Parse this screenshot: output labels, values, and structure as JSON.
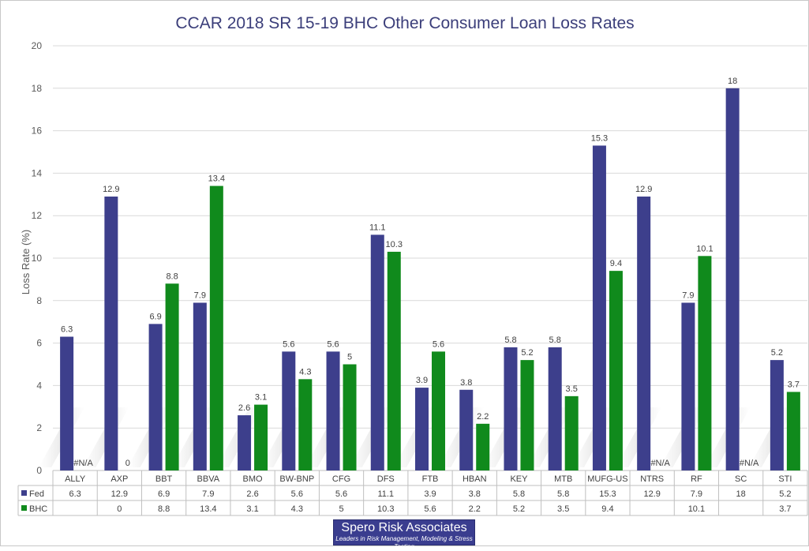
{
  "chart_data": {
    "type": "bar",
    "title": "CCAR 2018 SR 15-19 BHC Other Consumer Loan Loss Rates",
    "ylabel": "Loss Rate (%)",
    "xlabel": "",
    "ylim": [
      0,
      20
    ],
    "yticks": [
      0,
      2,
      4,
      6,
      8,
      10,
      12,
      14,
      16,
      18,
      20
    ],
    "grid": true,
    "legend": "data-table",
    "categories": [
      "ALLY",
      "AXP",
      "BBT",
      "BBVA",
      "BMO",
      "BW-BNP",
      "CFG",
      "DFS",
      "FTB",
      "HBAN",
      "KEY",
      "MTB",
      "MUFG-US",
      "NTRS",
      "RF",
      "SC",
      "STI"
    ],
    "series": [
      {
        "name": "Fed",
        "color": "#3d3f8c",
        "values": [
          6.3,
          12.9,
          6.9,
          7.9,
          2.6,
          5.6,
          5.6,
          11.1,
          3.9,
          3.8,
          5.8,
          5.8,
          15.3,
          12.9,
          7.9,
          18,
          5.2
        ],
        "labels": [
          "6.3",
          "12.9",
          "6.9",
          "7.9",
          "2.6",
          "5.6",
          "5.6",
          "11.1",
          "3.9",
          "3.8",
          "5.8",
          "5.8",
          "15.3",
          "12.9",
          "7.9",
          "18",
          "5.2"
        ],
        "table": [
          "6.3",
          "12.9",
          "6.9",
          "7.9",
          "2.6",
          "5.6",
          "5.6",
          "11.1",
          "3.9",
          "3.8",
          "5.8",
          "5.8",
          "15.3",
          "12.9",
          "7.9",
          "18",
          "5.2"
        ]
      },
      {
        "name": "BHC",
        "color": "#108a1c",
        "values": [
          null,
          0,
          8.8,
          13.4,
          3.1,
          4.3,
          5,
          10.3,
          5.6,
          2.2,
          5.2,
          3.5,
          9.4,
          null,
          10.1,
          null,
          3.7
        ],
        "labels": [
          "#N/A",
          "0",
          "8.8",
          "13.4",
          "3.1",
          "4.3",
          "5",
          "10.3",
          "5.6",
          "2.2",
          "5.2",
          "3.5",
          "9.4",
          "#N/A",
          "10.1",
          "#N/A",
          "3.7"
        ],
        "table": [
          "",
          "0",
          "8.8",
          "13.4",
          "3.1",
          "4.3",
          "5",
          "10.3",
          "5.6",
          "2.2",
          "5.2",
          "3.5",
          "9.4",
          "",
          "10.1",
          "",
          "3.7"
        ]
      }
    ]
  },
  "logo": {
    "name": "Spero Risk Associates",
    "tagline": "Leaders in Risk Management, Modeling & Stress Testing"
  }
}
